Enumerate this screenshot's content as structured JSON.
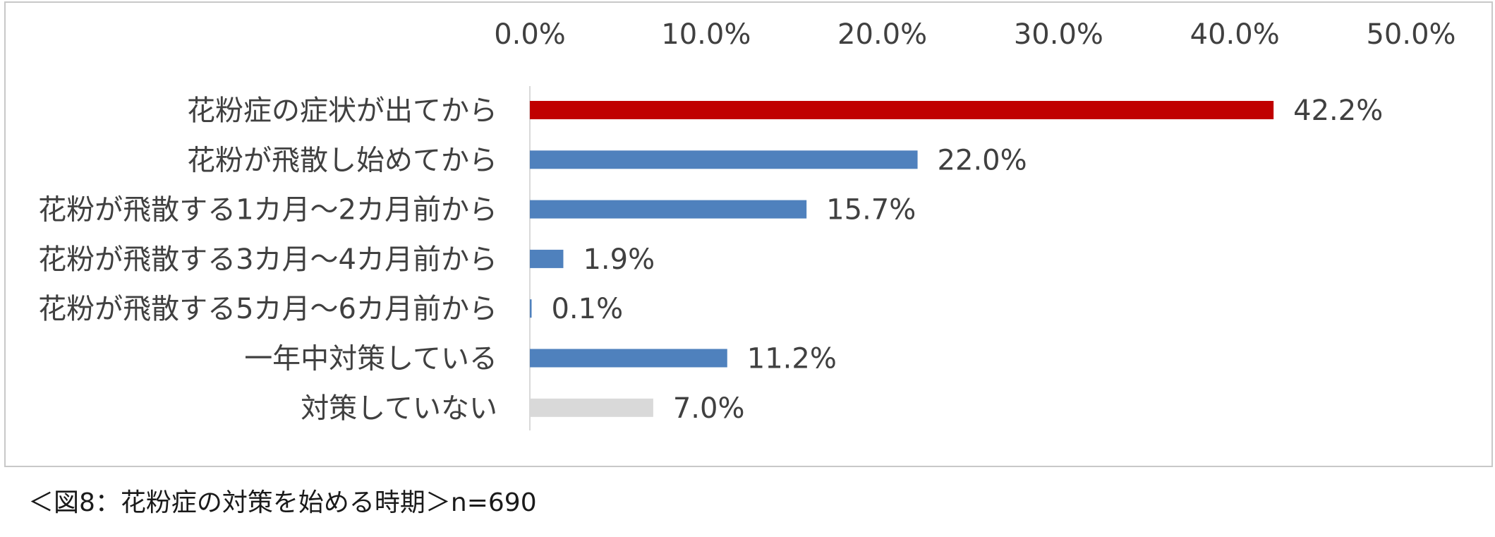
{
  "chart_data": {
    "type": "bar",
    "orientation": "horizontal",
    "categories": [
      "花粉症の症状が出てから",
      "花粉が飛散し始めてから",
      "花粉が飛散する1カ月～2カ月前から",
      "花粉が飛散する3カ月～4カ月前から",
      "花粉が飛散する5カ月～6カ月前から",
      "一年中対策している",
      "対策していない"
    ],
    "values": [
      42.2,
      22.0,
      15.7,
      1.9,
      0.1,
      11.2,
      7.0
    ],
    "value_labels": [
      "42.2%",
      "22.0%",
      "15.7%",
      "1.9%",
      "0.1%",
      "11.2%",
      "7.0%"
    ],
    "bar_colors": [
      "#c00000",
      "#4f81bd",
      "#4f81bd",
      "#4f81bd",
      "#4f81bd",
      "#4f81bd",
      "#d9d9d9"
    ],
    "xlim": [
      0,
      50
    ],
    "x_ticks": [
      "0.0%",
      "10.0%",
      "20.0%",
      "30.0%",
      "40.0%",
      "50.0%"
    ],
    "x_axis_position": "top",
    "grid": false,
    "legend": "none",
    "xlabel": "",
    "ylabel": ""
  },
  "caption": "＜図8：花粉症の対策を始める時期＞n=690"
}
